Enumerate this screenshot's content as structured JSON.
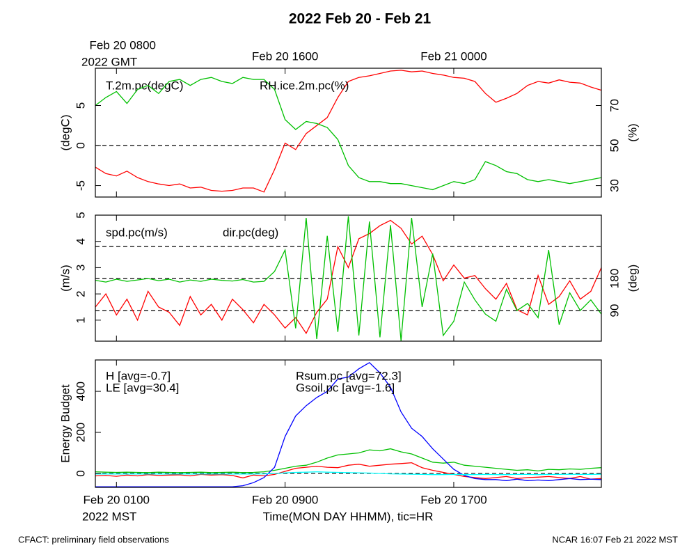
{
  "title": "2022 Feb 20 - Feb 21",
  "footer_left": "CFACT: preliminary field observations",
  "footer_right": "NCAR 16:07 Feb 21 2022 MST",
  "chart_data": [
    {
      "type": "line",
      "ylabel": "(degC)",
      "y2label": "(%)",
      "x": [
        0,
        0.5,
        1,
        1.5,
        2,
        2.5,
        3,
        3.5,
        4,
        4.5,
        5,
        5.5,
        6,
        6.5,
        7,
        7.5,
        8,
        8.5,
        9,
        9.5,
        10,
        10.5,
        11,
        11.5,
        12,
        12.5,
        13,
        13.5,
        14,
        14.5,
        15,
        15.5,
        16,
        16.5,
        17,
        17.5,
        18,
        18.5,
        19,
        19.5,
        20,
        20.5,
        21,
        21.5,
        22,
        22.5,
        23,
        23.5,
        24
      ],
      "xlim": [
        0,
        24
      ],
      "xticks": [
        {
          "value": 1,
          "label": "Feb 20 0800"
        },
        {
          "value": 9,
          "label": "Feb 20 1600"
        },
        {
          "value": 17,
          "label": "Feb 21 0000"
        }
      ],
      "x_timezone_label": "2022 GMT",
      "ylim": [
        -6.43,
        9.65
      ],
      "yticks": [
        -5,
        0,
        5
      ],
      "y2lim": [
        24.3,
        88.6
      ],
      "y2ticks": [
        30,
        50,
        70
      ],
      "hlines": [
        0
      ],
      "series": [
        {
          "name": "T.2m.pc(degC)",
          "color": "#ff0000",
          "values": [
            -2.7,
            -3.5,
            -3.8,
            -3.2,
            -4.0,
            -4.5,
            -4.8,
            -5.0,
            -4.8,
            -5.3,
            -5.2,
            -5.6,
            -5.7,
            -5.6,
            -5.3,
            -5.3,
            -5.8,
            -3.0,
            0.3,
            -0.5,
            1.5,
            2.5,
            3.5,
            6.0,
            8.0,
            8.5,
            8.7,
            9.0,
            9.3,
            9.4,
            9.2,
            9.3,
            9.0,
            8.8,
            8.5,
            8.4,
            8.0,
            6.5,
            5.4,
            5.9,
            6.5,
            7.5,
            8.0,
            7.8,
            8.2,
            7.9,
            7.8,
            7.3,
            6.9
          ]
        },
        {
          "name": "RH.ice.2m.pc(%)",
          "color": "#00c000",
          "axis": "y2",
          "values": [
            70,
            74,
            77,
            71,
            78,
            80,
            76,
            82,
            83,
            80,
            83,
            84,
            82,
            81,
            84,
            83,
            83,
            78,
            63,
            58,
            62,
            61,
            59,
            53,
            40,
            34,
            32,
            32,
            31,
            31,
            30,
            29,
            28,
            30,
            32,
            31,
            33,
            42,
            40,
            37,
            36,
            33,
            32,
            33,
            32,
            31,
            32,
            33,
            34
          ]
        }
      ]
    },
    {
      "type": "line",
      "ylabel": "(m/s)",
      "y2label": "(deg)",
      "x": [
        0,
        0.5,
        1,
        1.5,
        2,
        2.5,
        3,
        3.5,
        4,
        4.5,
        5,
        5.5,
        6,
        6.5,
        7,
        7.5,
        8,
        8.5,
        9,
        9.5,
        10,
        10.5,
        11,
        11.5,
        12,
        12.5,
        13,
        13.5,
        14,
        14.5,
        15,
        15.5,
        16,
        16.5,
        17,
        17.5,
        18,
        18.5,
        19,
        19.5,
        20,
        20.5,
        21,
        21.5,
        22,
        22.5,
        23,
        23.5,
        24
      ],
      "xlim": [
        0,
        24
      ],
      "xticks": [
        1,
        9,
        17
      ],
      "ylim": [
        0.2,
        5
      ],
      "yticks": [
        1,
        2,
        3,
        4,
        5
      ],
      "y2lim": [
        4,
        358
      ],
      "y2ticks": [
        90,
        180
      ],
      "y2_hlines": [
        90,
        180,
        270
      ],
      "series": [
        {
          "name": "spd.pc(m/s)",
          "color": "#ff0000",
          "values": [
            1.5,
            2.0,
            1.2,
            1.8,
            1.0,
            2.1,
            1.5,
            1.3,
            0.8,
            1.9,
            1.2,
            1.6,
            1.0,
            1.8,
            1.4,
            0.9,
            1.6,
            1.2,
            0.7,
            1.1,
            0.5,
            1.3,
            1.8,
            3.8,
            3.0,
            4.1,
            4.3,
            4.6,
            4.8,
            4.5,
            3.9,
            4.2,
            3.5,
            2.5,
            3.1,
            2.6,
            2.7,
            2.2,
            1.8,
            2.4,
            1.4,
            1.2,
            2.7,
            1.6,
            1.9,
            2.5,
            1.8,
            2.1,
            3.0
          ]
        },
        {
          "name": "dir.pc(deg)",
          "color": "#00c000",
          "axis": "y2",
          "values": [
            175,
            170,
            178,
            172,
            176,
            180,
            174,
            178,
            170,
            176,
            172,
            178,
            175,
            173,
            177,
            170,
            172,
            200,
            260,
            40,
            350,
            10,
            300,
            30,
            355,
            20,
            340,
            15,
            330,
            5,
            350,
            100,
            250,
            20,
            60,
            170,
            120,
            80,
            60,
            150,
            90,
            110,
            70,
            260,
            50,
            140,
            90,
            120,
            80
          ]
        }
      ]
    },
    {
      "type": "line",
      "ylabel": "Energy Budget",
      "xlabel": "Time(MON DAY HHMM), tic=HR",
      "x": [
        0,
        0.5,
        1,
        1.5,
        2,
        2.5,
        3,
        3.5,
        4,
        4.5,
        5,
        5.5,
        6,
        6.5,
        7,
        7.5,
        8,
        8.5,
        9,
        9.5,
        10,
        10.5,
        11,
        11.5,
        12,
        12.5,
        13,
        13.5,
        14,
        14.5,
        15,
        15.5,
        16,
        16.5,
        17,
        17.5,
        18,
        18.5,
        19,
        19.5,
        20,
        20.5,
        21,
        21.5,
        22,
        22.5,
        23,
        23.5,
        24
      ],
      "xlim": [
        0,
        24
      ],
      "xticks": [
        {
          "value": 1,
          "label": "Feb 20 0100"
        },
        {
          "value": 9,
          "label": "Feb 20 0900"
        },
        {
          "value": 17,
          "label": "Feb 20 1700"
        }
      ],
      "x_timezone_label": "2022 MST",
      "ylim": [
        -68,
        553
      ],
      "yticks": [
        0,
        200,
        400
      ],
      "hlines": [
        0
      ],
      "series": [
        {
          "name": "H [avg=-0.7]",
          "color": "#ff0000",
          "values": [
            -12,
            -10,
            -14,
            -8,
            -12,
            -6,
            -10,
            -8,
            -7,
            -12,
            -5,
            -8,
            -6,
            -10,
            -22,
            -8,
            -12,
            -5,
            10,
            25,
            30,
            35,
            30,
            28,
            40,
            45,
            35,
            40,
            45,
            48,
            52,
            28,
            15,
            5,
            -5,
            -15,
            -20,
            -25,
            -20,
            -15,
            -25,
            -20,
            -18,
            -15,
            -20,
            -25,
            -15,
            -28,
            -25
          ]
        },
        {
          "name": "LE [avg=30.4]",
          "color": "#00c000",
          "values": [
            8,
            6,
            5,
            6,
            5,
            4,
            6,
            5,
            4,
            5,
            6,
            4,
            5,
            6,
            4,
            5,
            8,
            15,
            25,
            35,
            40,
            55,
            75,
            90,
            95,
            100,
            115,
            110,
            120,
            105,
            95,
            75,
            55,
            50,
            55,
            40,
            35,
            30,
            25,
            20,
            15,
            18,
            12,
            20,
            18,
            22,
            20,
            25,
            28
          ]
        },
        {
          "name": "Rsum.pc [avg=72.3]",
          "color": "#0000ff",
          "values": [
            -65,
            -65,
            -65,
            -65,
            -65,
            -65,
            -65,
            -65,
            -65,
            -65,
            -65,
            -65,
            -65,
            -65,
            -60,
            -45,
            -20,
            30,
            180,
            280,
            330,
            370,
            400,
            460,
            470,
            510,
            540,
            490,
            420,
            300,
            220,
            180,
            120,
            70,
            20,
            -10,
            -25,
            -30,
            -30,
            -35,
            -28,
            -35,
            -32,
            -35,
            -30,
            -25,
            -30,
            -28,
            -30
          ]
        },
        {
          "name": "Gsoil.pc [avg=-1.6]",
          "color": "#00ffff",
          "values": [
            -3,
            -3,
            -3,
            -3,
            -3,
            -3,
            -3,
            -3,
            -3,
            -3,
            -3,
            -3,
            -3,
            -3,
            -3,
            -3,
            -2,
            0,
            3,
            5,
            6,
            8,
            6,
            5,
            4,
            3,
            2,
            0,
            -2,
            -3,
            -4,
            -5,
            -6,
            -6,
            -5,
            -6,
            -6,
            -5,
            -6,
            -6,
            -5,
            -5,
            -6,
            -5,
            -5,
            -4,
            -5,
            -5,
            -4
          ]
        }
      ]
    }
  ]
}
